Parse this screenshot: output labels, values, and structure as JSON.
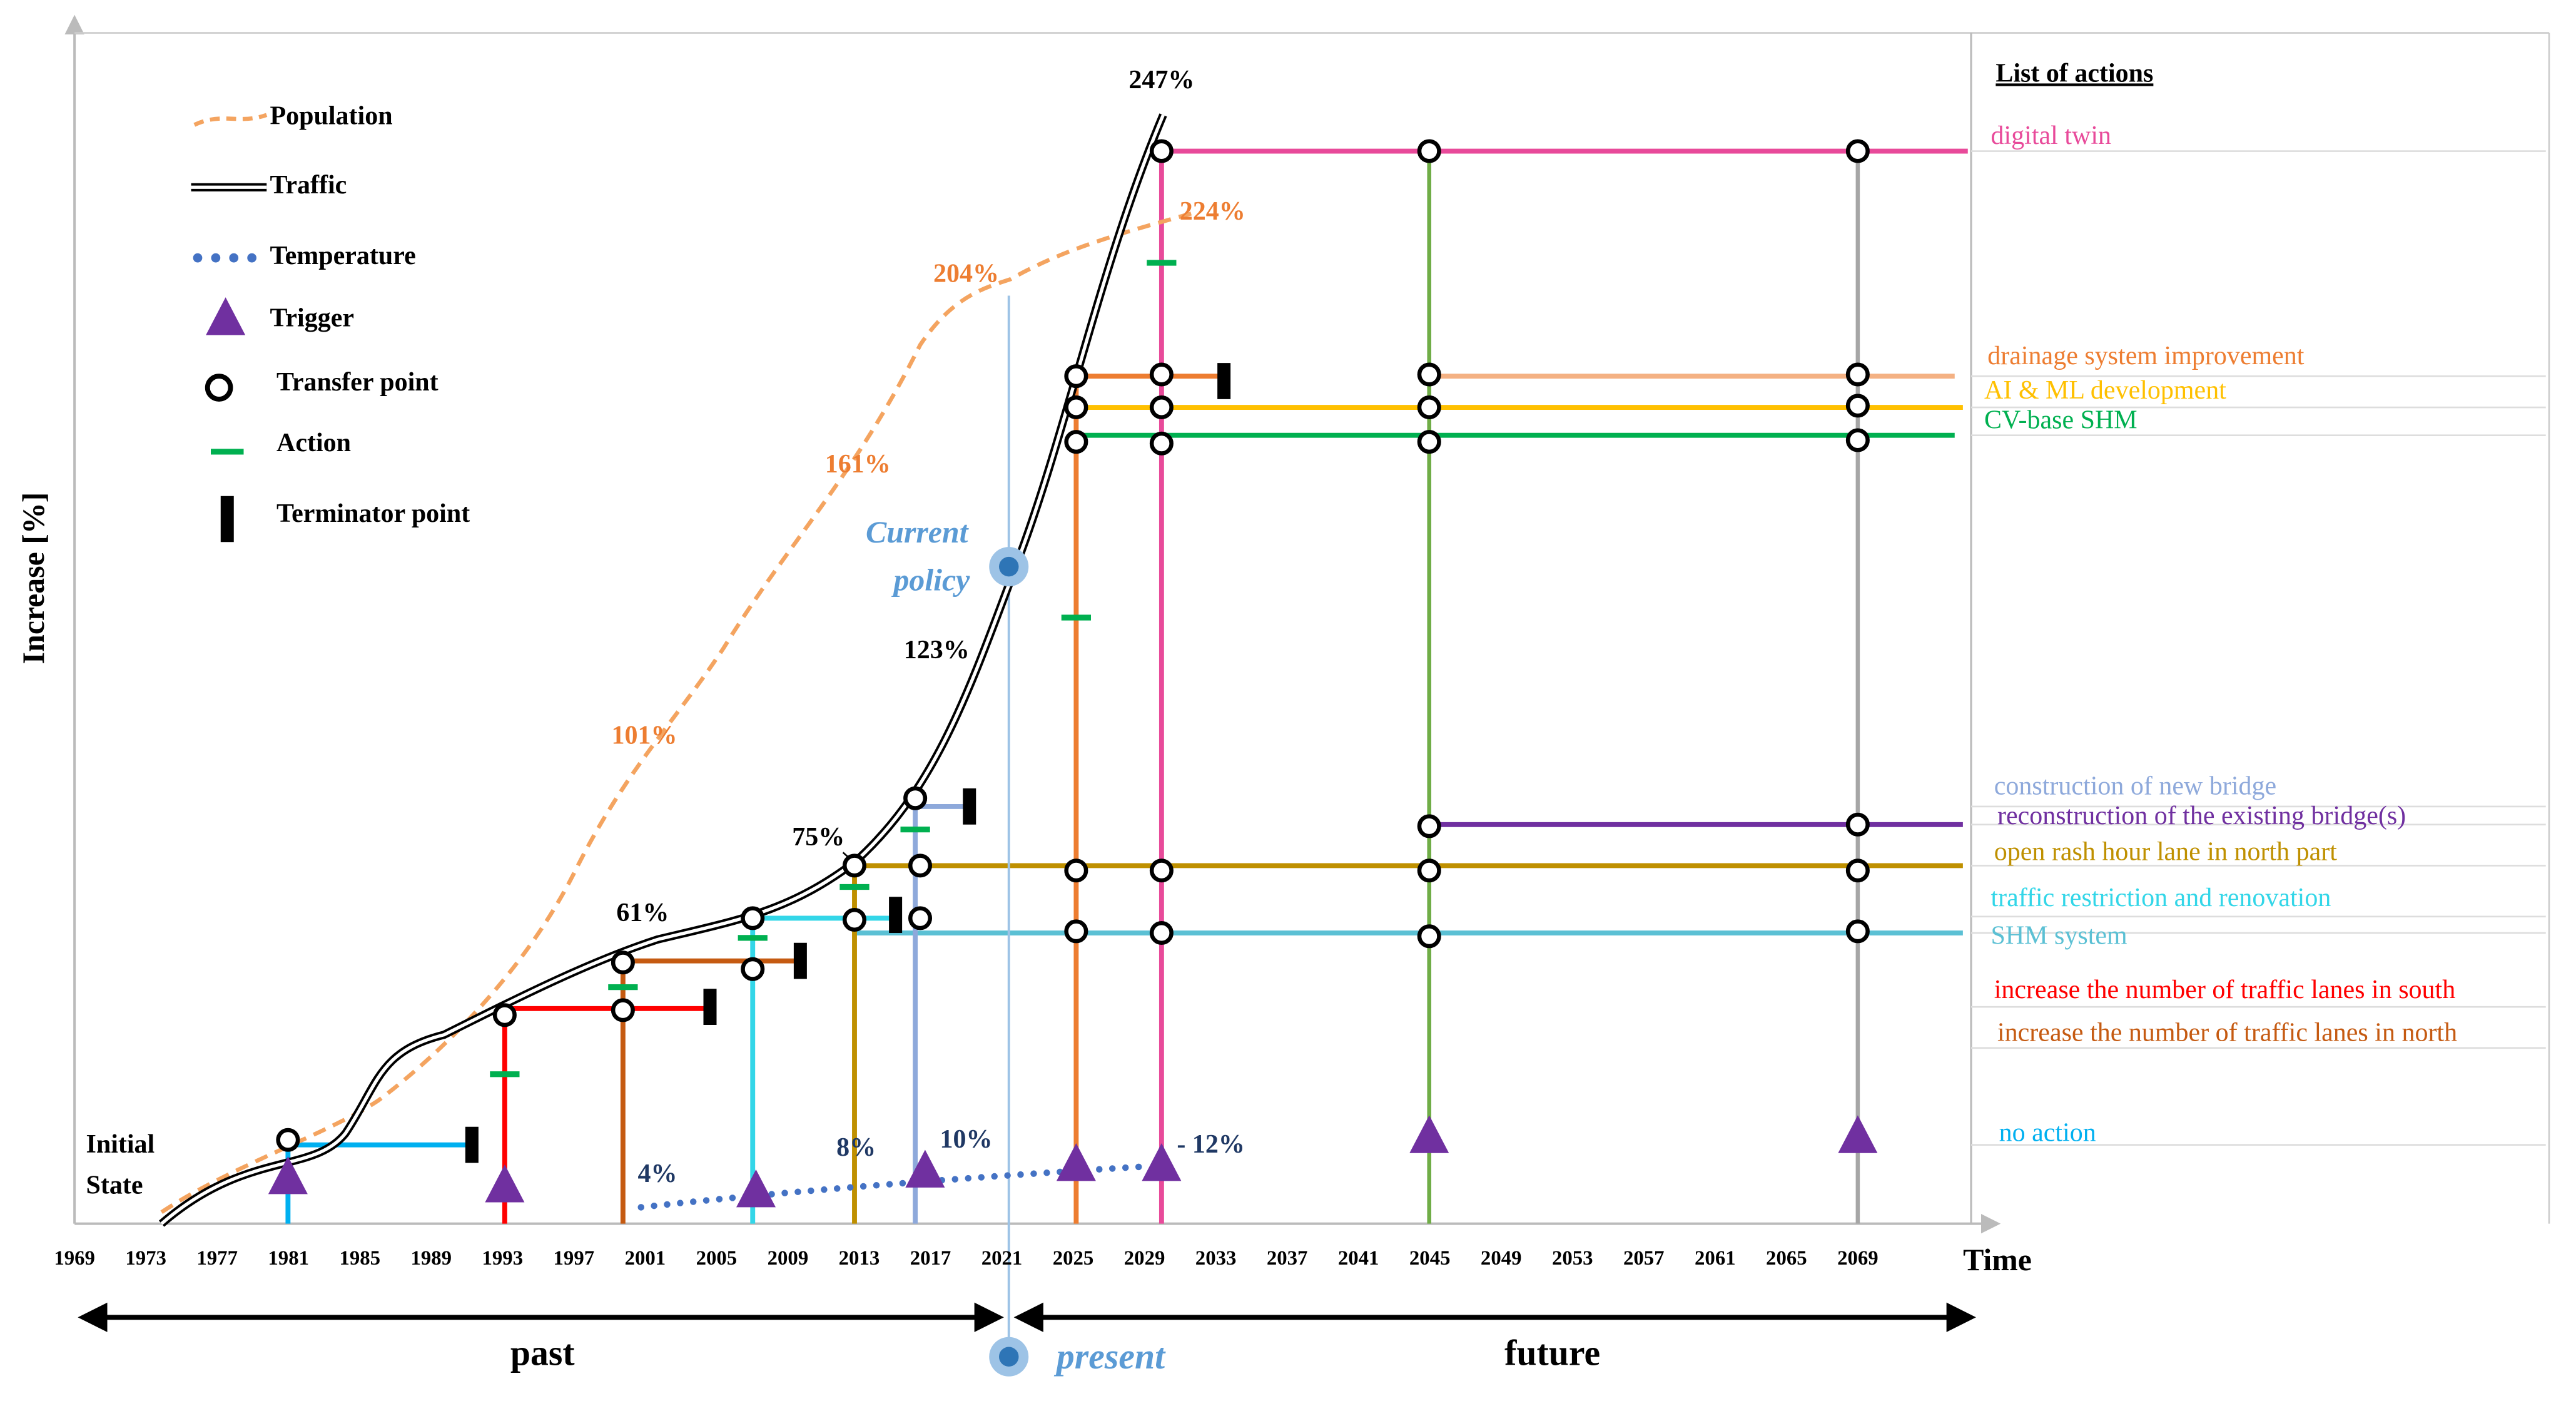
{
  "y_axis_label": "Increase [%]",
  "x_axis_label": "Time",
  "years": [
    "1969",
    "1973",
    "1977",
    "1981",
    "1985",
    "1989",
    "1993",
    "1997",
    "2001",
    "2005",
    "2009",
    "2013",
    "2017",
    "2021",
    "2025",
    "2029",
    "2033",
    "2037",
    "2041",
    "2045",
    "2049",
    "2053",
    "2057",
    "2061",
    "2065",
    "2069"
  ],
  "legend": [
    {
      "label": "Population",
      "color": "#f4a460"
    },
    {
      "label": "Traffic",
      "color": "#000000"
    },
    {
      "label": "Temperature",
      "color": "#4472c4"
    },
    {
      "label": "Trigger",
      "color": "#7030a0"
    },
    {
      "label": "Transfer point",
      "color": "#000000"
    },
    {
      "label": "Action",
      "color": "#00b050"
    },
    {
      "label": "Terminator point",
      "color": "#000000"
    }
  ],
  "actions_title": "List of actions",
  "actions": [
    {
      "label": "digital twin",
      "color": "#e84a9a"
    },
    {
      "label": "drainage system improvement",
      "color": "#ed7d31"
    },
    {
      "label": "AI & ML development",
      "color": "#ffc000"
    },
    {
      "label": "CV-base SHM",
      "color": "#00b050"
    },
    {
      "label": "construction of new bridge",
      "color": "#8ea9db"
    },
    {
      "label": "reconstruction of the existing bridge(s)",
      "color": "#7030a0"
    },
    {
      "label": "open rash hour lane in north part",
      "color": "#bf9000"
    },
    {
      "label": "traffic restriction and renovation",
      "color": "#33d6e8"
    },
    {
      "label": "SHM system",
      "color": "#5bc0d4"
    },
    {
      "label": "increase the number of traffic lanes in south",
      "color": "#ff0000"
    },
    {
      "label": "increase the number of traffic lanes in north",
      "color": "#c55a11"
    },
    {
      "label": "no action",
      "color": "#00b0f0"
    }
  ],
  "annotations": [
    "247%",
    "224%",
    "204%",
    "161%",
    "123%",
    "101%",
    "75%",
    "61%",
    "4%",
    "8%",
    "10%",
    "- 12%"
  ],
  "current_policy": [
    "Current",
    "policy"
  ],
  "initial_state": [
    "Initial",
    "State"
  ],
  "timeline": [
    "past",
    "present",
    "future"
  ]
}
